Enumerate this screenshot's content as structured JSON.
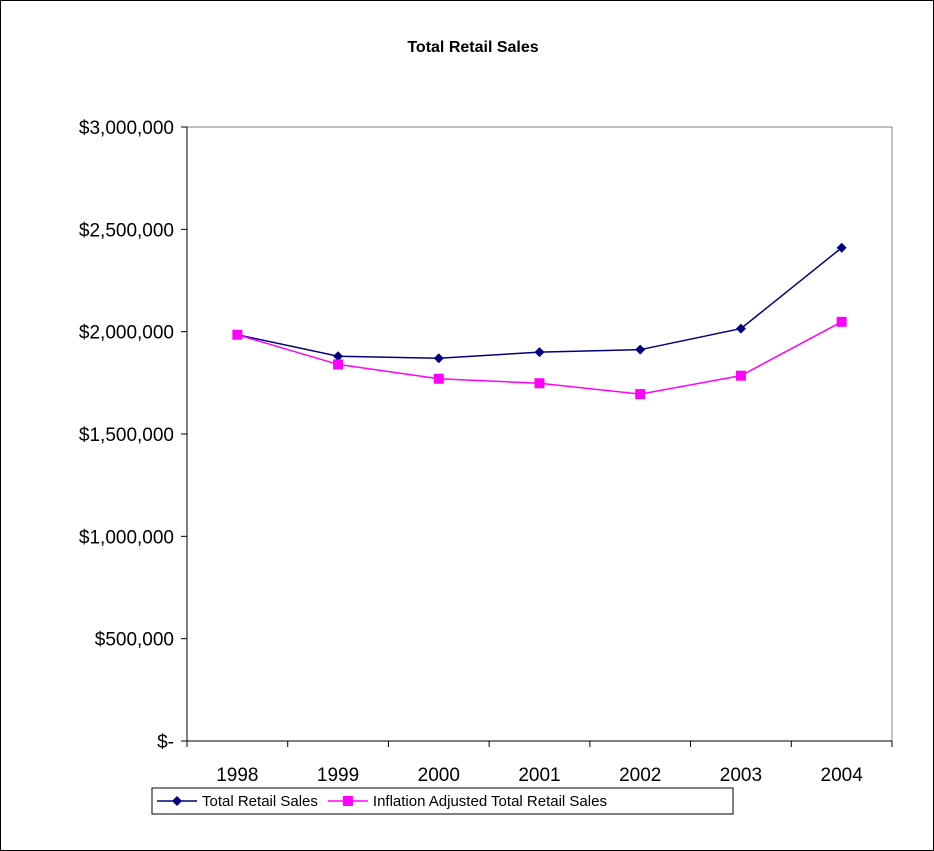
{
  "chart_data": {
    "type": "line",
    "title": "Total Retail Sales",
    "xlabel": "",
    "ylabel": "",
    "categories": [
      "1998",
      "1999",
      "2000",
      "2001",
      "2002",
      "2003",
      "2004"
    ],
    "ylim": [
      0,
      3000000
    ],
    "y_ticks": [
      0,
      500000,
      1000000,
      1500000,
      2000000,
      2500000,
      3000000
    ],
    "y_tick_labels": [
      "$-",
      "$500,000",
      "$1,000,000",
      "$1,500,000",
      "$2,000,000",
      "$2,500,000",
      "$3,000,000"
    ],
    "grid": false,
    "legend_position": "bottom",
    "series": [
      {
        "name": "Total Retail Sales",
        "color": "#000080",
        "marker": "diamond",
        "values": [
          1985000,
          1880000,
          1870000,
          1900000,
          1912000,
          2015000,
          2410000
        ]
      },
      {
        "name": "Inflation Adjusted Total Retail Sales",
        "color": "#FF00FF",
        "marker": "square",
        "values": [
          1985000,
          1840000,
          1770000,
          1748000,
          1695000,
          1785000,
          2048000
        ]
      }
    ]
  }
}
